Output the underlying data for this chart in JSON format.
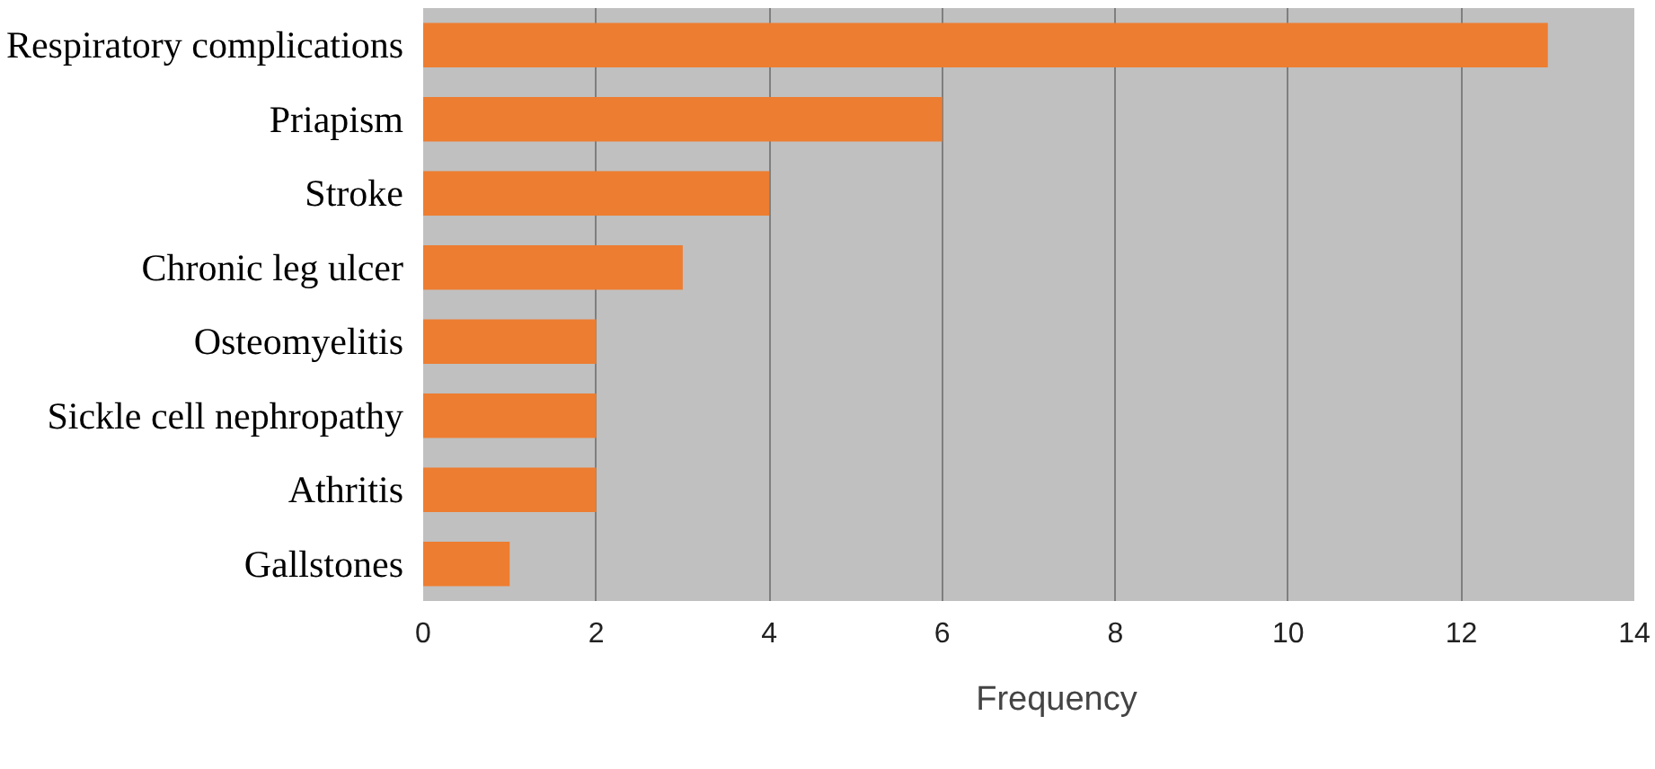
{
  "chart_data": {
    "type": "bar",
    "orientation": "horizontal",
    "categories": [
      "Respiratory complications",
      "Priapism",
      "Stroke",
      "Chronic leg ulcer",
      "Osteomyelitis",
      "Sickle cell nephropathy",
      "Athritis",
      "Gallstones"
    ],
    "series": [
      {
        "name": "Frequency",
        "color": "#ed7d31",
        "values": [
          13,
          6,
          4,
          3,
          2,
          2,
          2,
          1
        ]
      }
    ],
    "xlim": [
      0,
      14
    ],
    "xticks": [
      0,
      2,
      4,
      6,
      8,
      10,
      12,
      14
    ],
    "grid": "x",
    "legend": "bottom"
  }
}
